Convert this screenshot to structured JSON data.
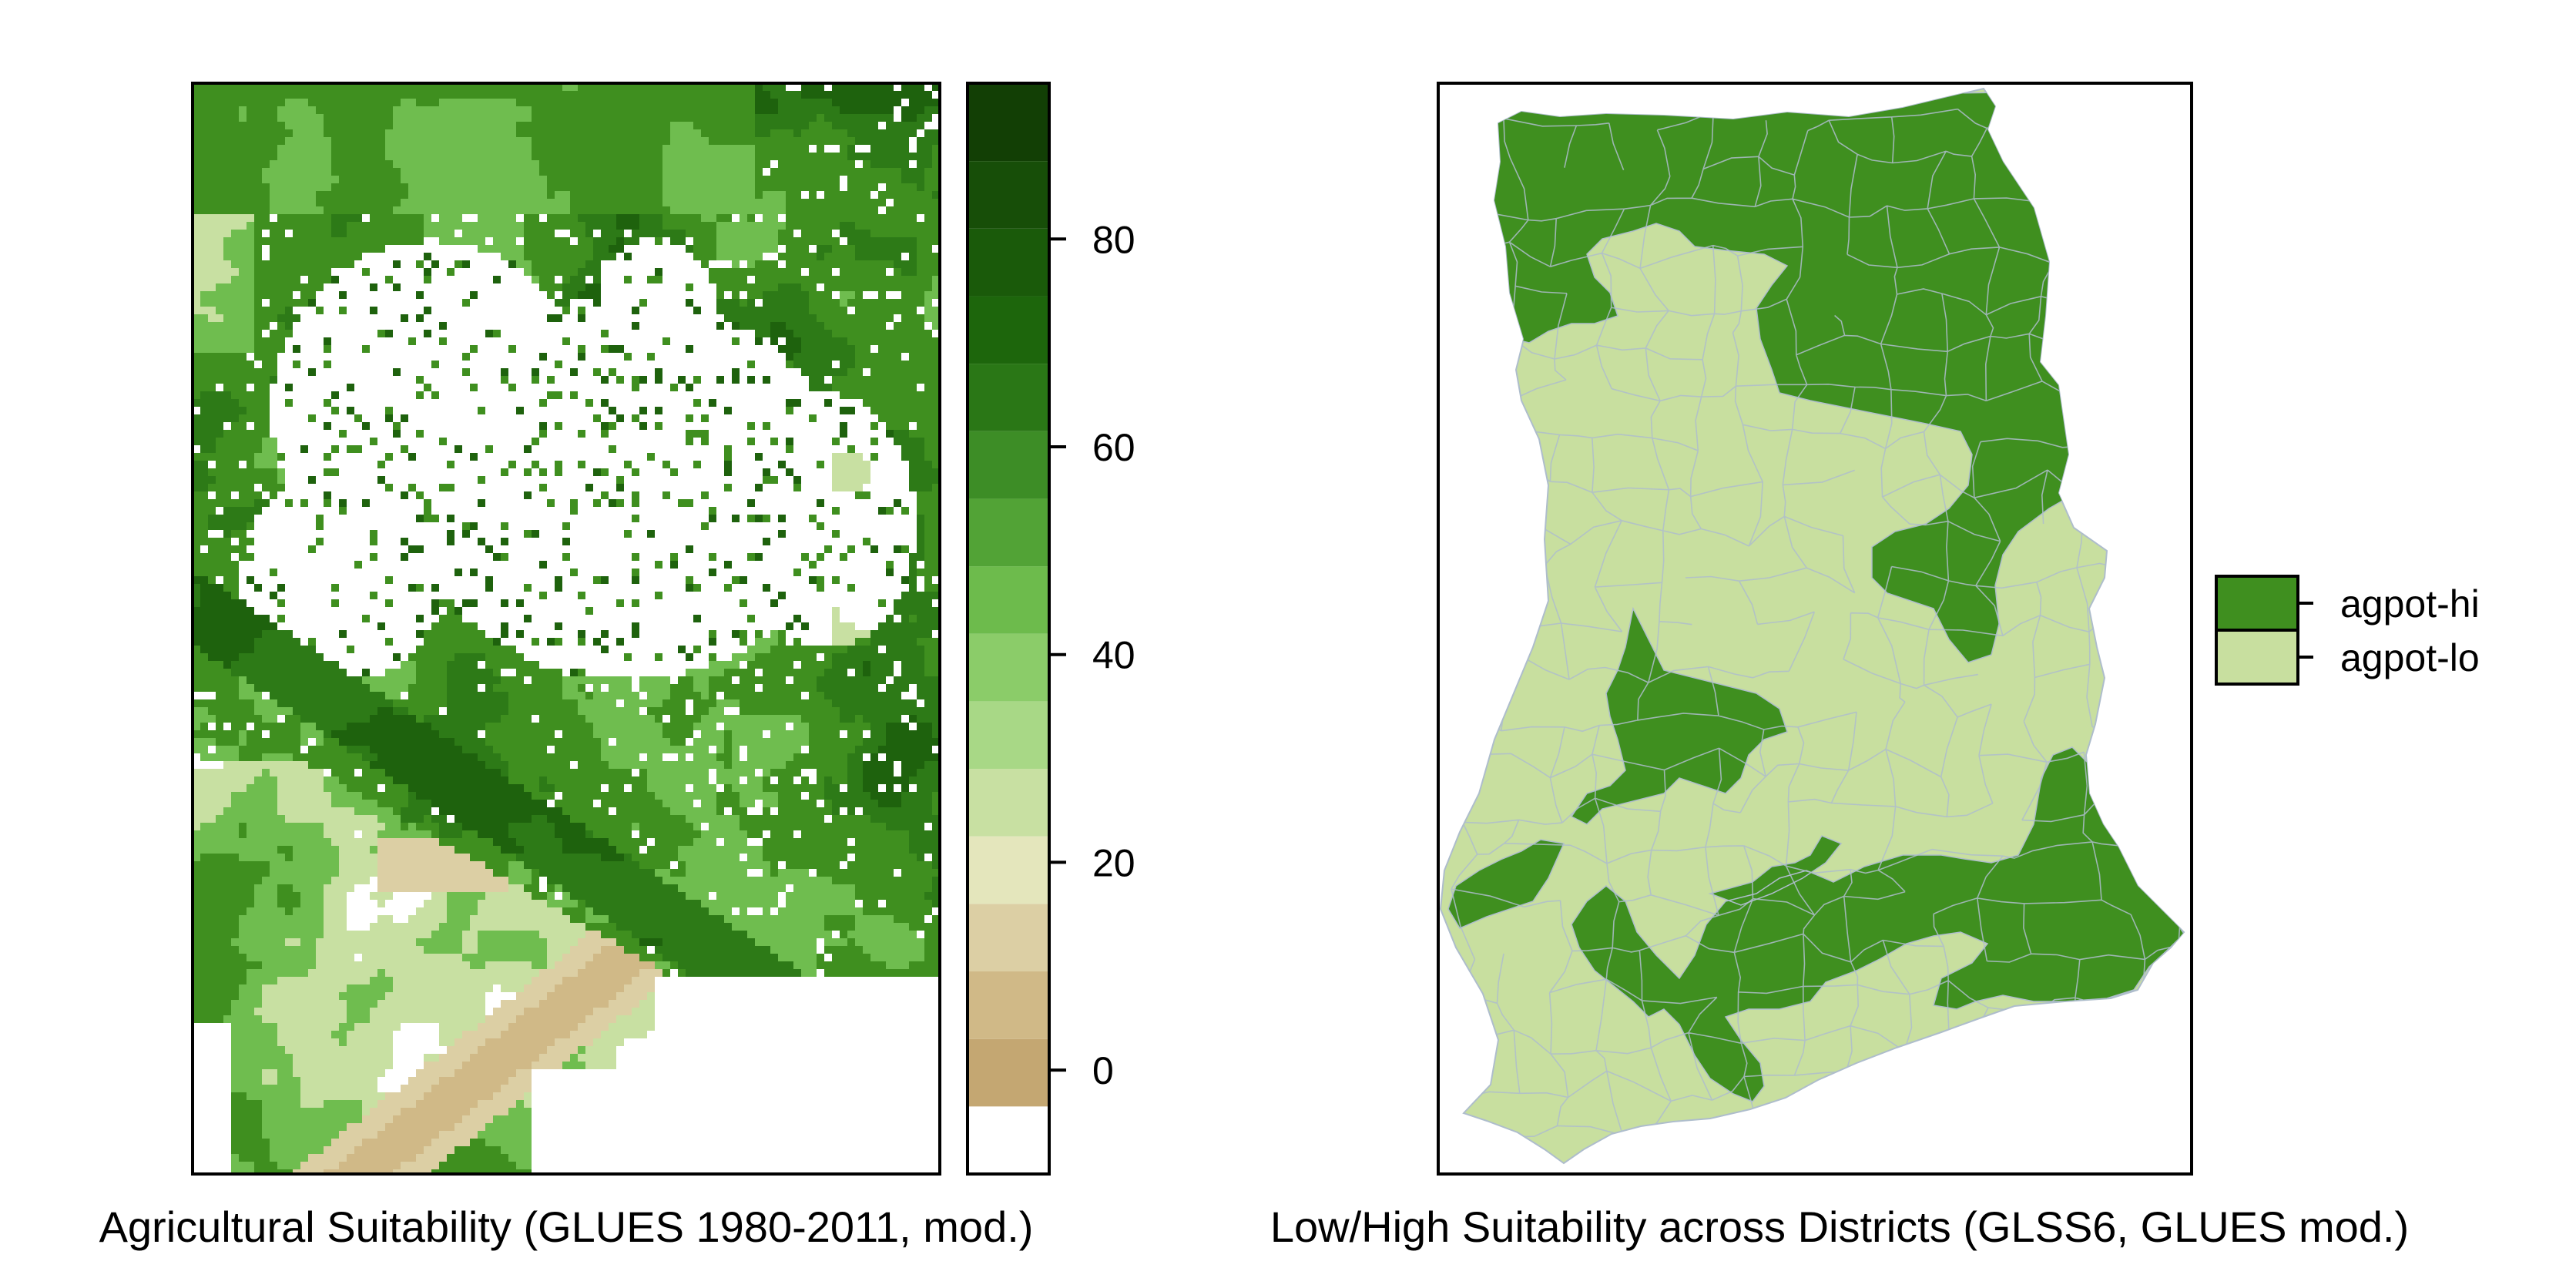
{
  "colors": {
    "high": "#3f8f1f",
    "low": "#c8df9f",
    "district_border": "#aebdcc",
    "frame": "#000000",
    "background": "#ffffff"
  },
  "left_panel": {
    "caption": "Agricultural Suitability (GLUES 1980-2011, mod.)",
    "colorbar": {
      "range": [
        -10,
        95
      ],
      "ticks": [
        {
          "value": 0,
          "label": "0"
        },
        {
          "value": 20,
          "label": "20"
        },
        {
          "value": 40,
          "label": "40"
        },
        {
          "value": 60,
          "label": "60"
        },
        {
          "value": 80,
          "label": "80"
        }
      ],
      "bins": [
        {
          "from": -10,
          "to": -3.5,
          "color": "#ffffff"
        },
        {
          "from": -3.5,
          "to": 3,
          "color": "#c4a772"
        },
        {
          "from": 3,
          "to": 9.5,
          "color": "#d0b987"
        },
        {
          "from": 9.5,
          "to": 16,
          "color": "#dccfa4"
        },
        {
          "from": 16,
          "to": 22.5,
          "color": "#e4e6bc"
        },
        {
          "from": 22.5,
          "to": 29,
          "color": "#c8e0a2"
        },
        {
          "from": 29,
          "to": 35.5,
          "color": "#a8d886"
        },
        {
          "from": 35.5,
          "to": 42,
          "color": "#8bcc69"
        },
        {
          "from": 42,
          "to": 48.5,
          "color": "#6dbb4c"
        },
        {
          "from": 48.5,
          "to": 55,
          "color": "#52a336"
        },
        {
          "from": 55,
          "to": 61.5,
          "color": "#3d8d26"
        },
        {
          "from": 61.5,
          "to": 68,
          "color": "#2a7716"
        },
        {
          "from": 68,
          "to": 74.5,
          "color": "#1d660c"
        },
        {
          "from": 74.5,
          "to": 81,
          "color": "#1a5a0a"
        },
        {
          "from": 81,
          "to": 87.5,
          "color": "#174e08"
        },
        {
          "from": 87.5,
          "to": 95,
          "color": "#123f05"
        }
      ]
    },
    "raster_palette": {
      "very_dark": "#1e620d",
      "dark": "#2d7a17",
      "mid": "#3f8f1f",
      "light": "#6fbd4f",
      "pale": "#a8d886",
      "paler": "#c8e0a2",
      "tan": "#dccfa4",
      "tan_dark": "#d0b987",
      "white": "#ffffff"
    }
  },
  "right_panel": {
    "caption": "Low/High Suitability across Districts (GLSS6, GLUES mod.)",
    "legend": [
      {
        "key": "high",
        "label": "agpot-hi"
      },
      {
        "key": "low",
        "label": "agpot-lo"
      }
    ]
  }
}
